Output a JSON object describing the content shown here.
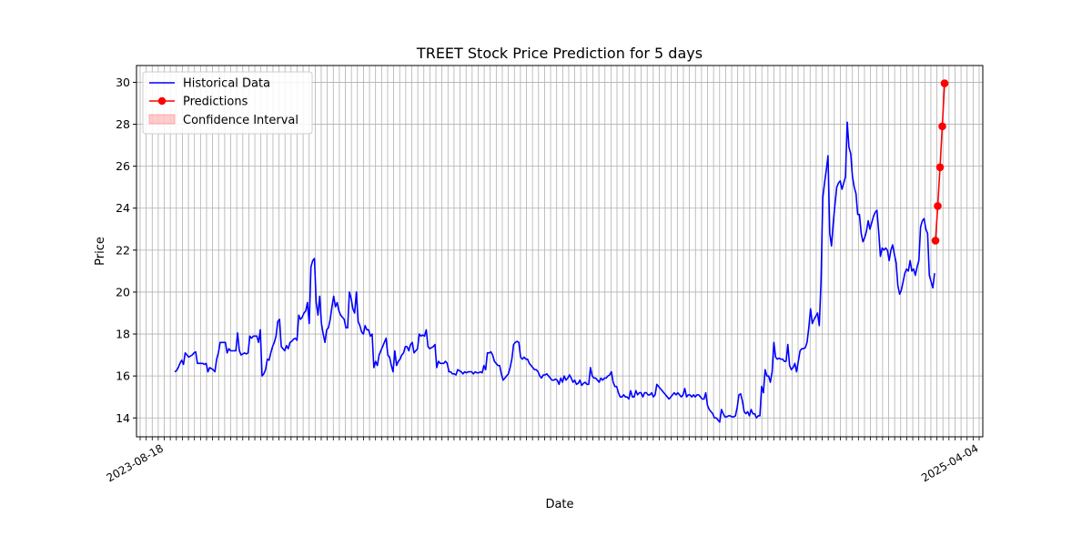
{
  "chart_data": {
    "type": "line",
    "title": "TREET Stock Price Prediction for 5 days",
    "xlabel": "Date",
    "ylabel": "Price",
    "ylim": [
      13.1,
      30.8
    ],
    "yticks": [
      14,
      16,
      18,
      20,
      22,
      24,
      26,
      28,
      30
    ],
    "grid": true,
    "legend": "top-left",
    "colors": {
      "historical": "#0000ff",
      "predictions": "#ff0000",
      "confidence": "#ff9999",
      "grid": "#b0b0b0"
    },
    "xtick_labels": [
      "2023-08-18",
      "2025-04-04"
    ],
    "series": [
      {
        "name": "Historical Data",
        "values": [
          16.2,
          16.25,
          16.4,
          16.6,
          16.75,
          16.55,
          17.1,
          17.0,
          16.9,
          16.95,
          17.0,
          17.1,
          17.15,
          16.6,
          16.6,
          16.6,
          16.6,
          16.55,
          16.6,
          16.2,
          16.4,
          16.35,
          16.3,
          16.2,
          16.8,
          17.1,
          17.6,
          17.6,
          17.6,
          17.6,
          17.1,
          17.3,
          17.2,
          17.2,
          17.2,
          17.2,
          18.05,
          17.2,
          17.0,
          17.05,
          17.1,
          17.05,
          17.1,
          17.9,
          17.8,
          17.9,
          17.9,
          17.9,
          17.6,
          18.2,
          16.0,
          16.1,
          16.3,
          16.8,
          16.75,
          17.1,
          17.4,
          17.6,
          17.9,
          18.6,
          18.7,
          17.4,
          17.3,
          17.2,
          17.45,
          17.3,
          17.6,
          17.65,
          17.75,
          17.8,
          17.7,
          18.9,
          18.7,
          18.8,
          19.0,
          19.1,
          19.5,
          18.5,
          21.2,
          21.5,
          21.6,
          19.5,
          18.9,
          19.8,
          18.5,
          18.0,
          17.6,
          18.2,
          18.3,
          18.7,
          19.3,
          19.8,
          19.3,
          19.5,
          19.1,
          18.9,
          18.8,
          18.7,
          18.3,
          18.3,
          20.0,
          19.7,
          19.2,
          19.0,
          20.0,
          18.6,
          18.4,
          18.1,
          18.0,
          18.4,
          18.2,
          18.2,
          17.9,
          18.0,
          16.4,
          16.7,
          16.5,
          17.0,
          17.2,
          17.4,
          17.6,
          17.8,
          17.0,
          16.9,
          16.5,
          16.2,
          17.2,
          16.5,
          16.7,
          16.8,
          17.0,
          17.1,
          17.4,
          17.4,
          17.2,
          17.5,
          17.6,
          17.1,
          17.2,
          17.3,
          18.0,
          17.9,
          17.95,
          17.9,
          18.2,
          17.4,
          17.3,
          17.35,
          17.4,
          17.5,
          16.4,
          16.7,
          16.6,
          16.6,
          16.6,
          16.7,
          16.6,
          16.2,
          16.2,
          16.1,
          16.1,
          16.05,
          16.3,
          16.25,
          16.2,
          16.1,
          16.2,
          16.15,
          16.2,
          16.2,
          16.2,
          16.1,
          16.2,
          16.15,
          16.15,
          16.2,
          16.15,
          16.5,
          16.3,
          17.1,
          17.1,
          17.15,
          17.0,
          16.7,
          16.6,
          16.5,
          16.5,
          16.1,
          15.8,
          15.9,
          16.0,
          16.1,
          16.4,
          16.8,
          17.5,
          17.6,
          17.65,
          17.6,
          16.9,
          16.8,
          16.9,
          16.8,
          16.8,
          16.6,
          16.5,
          16.4,
          16.3,
          16.3,
          16.2,
          16.0,
          15.9,
          16.05,
          16.05,
          16.1,
          16.0,
          15.9,
          15.8,
          15.8,
          15.85,
          15.8,
          15.6,
          15.9,
          15.7,
          16.0,
          15.8,
          15.9,
          16.05,
          15.9,
          15.7,
          15.8,
          15.6,
          15.65,
          15.8,
          15.55,
          15.65,
          15.7,
          15.6,
          15.6,
          16.4,
          16.0,
          15.9,
          15.9,
          15.8,
          15.7,
          15.9,
          15.8,
          15.9,
          15.9,
          16.0,
          16.05,
          16.2,
          15.7,
          15.5,
          15.5,
          15.2,
          15.0,
          15.0,
          15.1,
          15.0,
          15.0,
          14.9,
          15.3,
          15.0,
          15.0,
          15.3,
          15.1,
          15.2,
          15.2,
          15.0,
          15.2,
          15.2,
          15.1,
          15.1,
          15.2,
          15.0,
          15.1,
          15.6,
          15.5,
          15.4,
          15.3,
          15.2,
          15.1,
          15.0,
          14.9,
          15.0,
          15.1,
          15.2,
          15.1,
          15.2,
          15.1,
          15.0,
          15.1,
          15.4,
          15.0,
          15.1,
          15.1,
          15.0,
          15.1,
          15.0,
          15.1,
          15.1,
          15.0,
          14.9,
          14.9,
          15.2,
          14.6,
          14.4,
          14.3,
          14.2,
          14.0,
          14.0,
          13.9,
          13.8,
          14.4,
          14.2,
          14.05,
          14.05,
          14.1,
          14.1,
          14.05,
          14.05,
          14.1,
          14.5,
          15.1,
          15.15,
          14.8,
          14.3,
          14.2,
          14.3,
          14.1,
          14.4,
          14.2,
          14.2,
          14.0,
          14.1,
          14.1,
          15.5,
          15.2,
          16.3,
          16.0,
          16.0,
          15.7,
          16.2,
          17.6,
          16.9,
          16.8,
          16.85,
          16.8,
          16.8,
          16.7,
          16.7,
          17.5,
          16.5,
          16.3,
          16.4,
          16.6,
          16.2,
          16.7,
          17.2,
          17.3,
          17.3,
          17.35,
          17.6,
          18.3,
          19.2,
          18.5,
          18.7,
          18.85,
          19.0,
          18.4,
          20.5,
          24.5,
          25.2,
          25.8,
          26.5,
          22.8,
          22.2,
          23.3,
          24.2,
          25.0,
          25.2,
          25.3,
          24.9,
          25.2,
          25.5,
          28.1,
          26.9,
          26.6,
          25.5,
          25.0,
          24.7,
          23.7,
          23.7,
          22.8,
          22.4,
          22.6,
          22.9,
          23.4,
          23.0,
          23.3,
          23.6,
          23.8,
          23.9,
          22.9,
          21.7,
          22.1,
          22.0,
          22.1,
          22.0,
          21.5,
          22.0,
          22.25,
          21.8,
          21.4,
          20.3,
          19.9,
          20.1,
          20.5,
          20.9,
          21.1,
          21.0,
          21.5,
          21.0,
          21.1,
          20.8,
          21.2,
          21.5,
          23.1,
          23.4,
          23.5,
          23.0,
          22.8,
          20.8,
          20.5,
          20.2,
          20.9
        ]
      },
      {
        "name": "Predictions",
        "values": [
          22.45,
          24.1,
          25.95,
          27.9,
          29.95
        ]
      },
      {
        "name": "Confidence Interval",
        "values": []
      }
    ]
  }
}
